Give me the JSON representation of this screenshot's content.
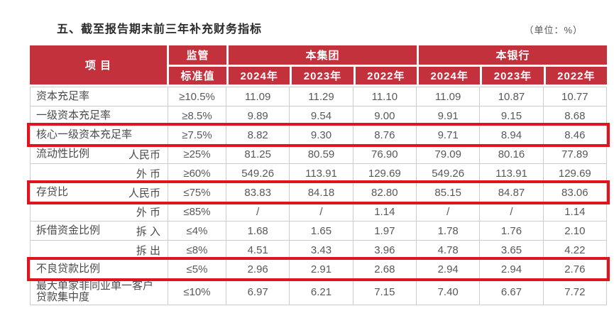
{
  "page": {
    "title": "五、截至报告期末前三年补充财务指标",
    "unit": "（单位：%）"
  },
  "colors": {
    "header_red": "#c3313c",
    "annotation_red": "#e0141e",
    "grid_gray": "#cccccc",
    "text_gray": "#58585a"
  },
  "table": {
    "header": {
      "item": "项 目",
      "regulator_line1": "监管",
      "regulator_line2": "标准值",
      "group": "本集团",
      "bank": "本银行",
      "group_years": [
        "2024年",
        "2023年",
        "2022年"
      ],
      "bank_years": [
        "2024年",
        "2023年",
        "2022年"
      ]
    },
    "rows": [
      {
        "item": "资本充足率",
        "sub": "",
        "standard": "≥10.5%",
        "values": [
          "11.09",
          "11.29",
          "11.10",
          "11.09",
          "10.87",
          "10.77"
        ],
        "highlight": false
      },
      {
        "item": "一级资本充足率",
        "sub": "",
        "standard": "≥8.5%",
        "values": [
          "9.89",
          "9.54",
          "9.00",
          "9.91",
          "9.15",
          "8.68"
        ],
        "highlight": false
      },
      {
        "item": "核心一级资本充足率",
        "sub": "",
        "standard": "≥7.5%",
        "values": [
          "8.82",
          "9.30",
          "8.76",
          "9.71",
          "8.94",
          "8.46"
        ],
        "highlight": true
      },
      {
        "item": "流动性比例",
        "sub": "人民币",
        "standard": "≥25%",
        "values": [
          "81.25",
          "80.59",
          "76.90",
          "79.09",
          "80.16",
          "77.89"
        ],
        "highlight": false
      },
      {
        "item": "",
        "sub": "外 币",
        "standard": "≥60%",
        "values": [
          "549.26",
          "113.91",
          "129.69",
          "549.26",
          "113.91",
          "129.69"
        ],
        "highlight": false
      },
      {
        "item": "存贷比",
        "sub": "人民币",
        "standard": "≤75%",
        "values": [
          "83.83",
          "84.18",
          "82.80",
          "85.15",
          "84.87",
          "83.06"
        ],
        "highlight": true
      },
      {
        "item": "",
        "sub": "外 币",
        "standard": "≤85%",
        "values": [
          "/",
          "/",
          "1.14",
          "/",
          "/",
          "1.14"
        ],
        "highlight": false
      },
      {
        "item": "拆借资金比例",
        "sub": "拆 入",
        "standard": "≤4%",
        "values": [
          "1.68",
          "1.65",
          "1.97",
          "1.78",
          "1.76",
          "2.10"
        ],
        "highlight": false
      },
      {
        "item": "",
        "sub": "拆 出",
        "standard": "≤8%",
        "values": [
          "4.51",
          "3.43",
          "3.96",
          "4.78",
          "3.65",
          "4.22"
        ],
        "highlight": false
      },
      {
        "item": "不良贷款比例",
        "sub": "",
        "standard": "≤5%",
        "values": [
          "2.96",
          "2.91",
          "2.68",
          "2.94",
          "2.94",
          "2.76"
        ],
        "highlight": true
      },
      {
        "item": "最大单家非同业单一客户贷款集中度",
        "sub": "",
        "standard": "≤10%",
        "values": [
          "6.97",
          "6.21",
          "7.15",
          "7.40",
          "6.67",
          "7.72"
        ],
        "highlight": false
      }
    ]
  }
}
